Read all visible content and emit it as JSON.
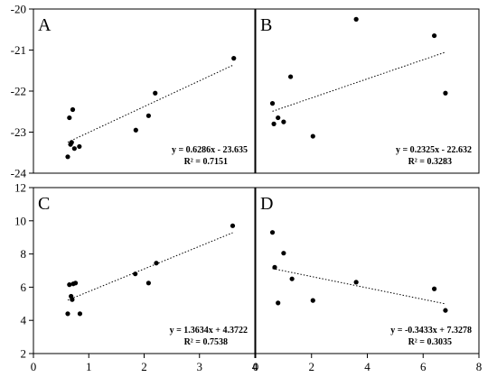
{
  "chart_data": [
    {
      "panel": "A",
      "type": "scatter",
      "xlim": [
        0,
        4
      ],
      "ylim": [
        -24,
        -20
      ],
      "x_ticks": [],
      "y_ticks": [
        -24,
        -23,
        -22,
        -21,
        -20
      ],
      "points": [
        {
          "x": 0.62,
          "y": -23.6
        },
        {
          "x": 0.65,
          "y": -22.65
        },
        {
          "x": 0.67,
          "y": -23.3
        },
        {
          "x": 0.69,
          "y": -23.25
        },
        {
          "x": 0.71,
          "y": -22.45
        },
        {
          "x": 0.74,
          "y": -23.4
        },
        {
          "x": 0.83,
          "y": -23.35
        },
        {
          "x": 1.85,
          "y": -22.95
        },
        {
          "x": 2.08,
          "y": -22.6
        },
        {
          "x": 2.2,
          "y": -22.05
        },
        {
          "x": 3.62,
          "y": -21.2
        }
      ],
      "trendline": {
        "slope": 0.6286,
        "intercept": -23.635,
        "x_range": [
          0.62,
          3.62
        ]
      },
      "equation": "y = 0.6286x - 23.635",
      "r2": "R² = 0.7151"
    },
    {
      "panel": "B",
      "type": "scatter",
      "xlim": [
        0,
        8
      ],
      "ylim": [
        -24,
        -20
      ],
      "x_ticks": [],
      "y_ticks": [],
      "points": [
        {
          "x": 0.6,
          "y": -22.3
        },
        {
          "x": 0.65,
          "y": -22.8
        },
        {
          "x": 0.8,
          "y": -22.65
        },
        {
          "x": 1.0,
          "y": -22.75
        },
        {
          "x": 1.25,
          "y": -21.65
        },
        {
          "x": 2.05,
          "y": -23.1
        },
        {
          "x": 3.6,
          "y": -20.25
        },
        {
          "x": 6.4,
          "y": -20.65
        },
        {
          "x": 6.8,
          "y": -22.05
        }
      ],
      "trendline": {
        "slope": 0.2325,
        "intercept": -22.632,
        "x_range": [
          0.6,
          6.8
        ]
      },
      "equation": "y = 0.2325x - 22.632",
      "r2": "R² = 0.3283"
    },
    {
      "panel": "C",
      "type": "scatter",
      "xlim": [
        0,
        4
      ],
      "ylim": [
        2,
        12
      ],
      "x_ticks": [
        0,
        1,
        2,
        3,
        4
      ],
      "y_ticks": [
        2,
        4,
        6,
        8,
        10,
        12
      ],
      "points": [
        {
          "x": 0.62,
          "y": 4.4
        },
        {
          "x": 0.65,
          "y": 6.15
        },
        {
          "x": 0.68,
          "y": 5.45
        },
        {
          "x": 0.7,
          "y": 5.25
        },
        {
          "x": 0.72,
          "y": 6.2
        },
        {
          "x": 0.76,
          "y": 6.25
        },
        {
          "x": 0.84,
          "y": 4.4
        },
        {
          "x": 1.84,
          "y": 6.8
        },
        {
          "x": 2.08,
          "y": 6.25
        },
        {
          "x": 2.22,
          "y": 7.45
        },
        {
          "x": 3.6,
          "y": 9.7
        }
      ],
      "trendline": {
        "slope": 1.3634,
        "intercept": 4.3722,
        "x_range": [
          0.62,
          3.6
        ]
      },
      "equation": "y = 1.3634x + 4.3722",
      "r2": "R² = 0.7538"
    },
    {
      "panel": "D",
      "type": "scatter",
      "xlim": [
        0,
        8
      ],
      "ylim": [
        2,
        12
      ],
      "x_ticks": [
        0,
        2,
        4,
        6,
        8
      ],
      "y_ticks": [],
      "points": [
        {
          "x": 0.6,
          "y": 9.3
        },
        {
          "x": 0.68,
          "y": 7.2
        },
        {
          "x": 0.8,
          "y": 5.05
        },
        {
          "x": 1.0,
          "y": 8.05
        },
        {
          "x": 1.3,
          "y": 6.5
        },
        {
          "x": 2.05,
          "y": 5.2
        },
        {
          "x": 3.6,
          "y": 6.3
        },
        {
          "x": 6.4,
          "y": 5.9
        },
        {
          "x": 6.8,
          "y": 4.6
        }
      ],
      "trendline": {
        "slope": -0.3433,
        "intercept": 7.3278,
        "x_range": [
          0.6,
          6.8
        ]
      },
      "equation": "y = -0.3433x + 7.3278",
      "r2": "R² = 0.3035"
    }
  ]
}
